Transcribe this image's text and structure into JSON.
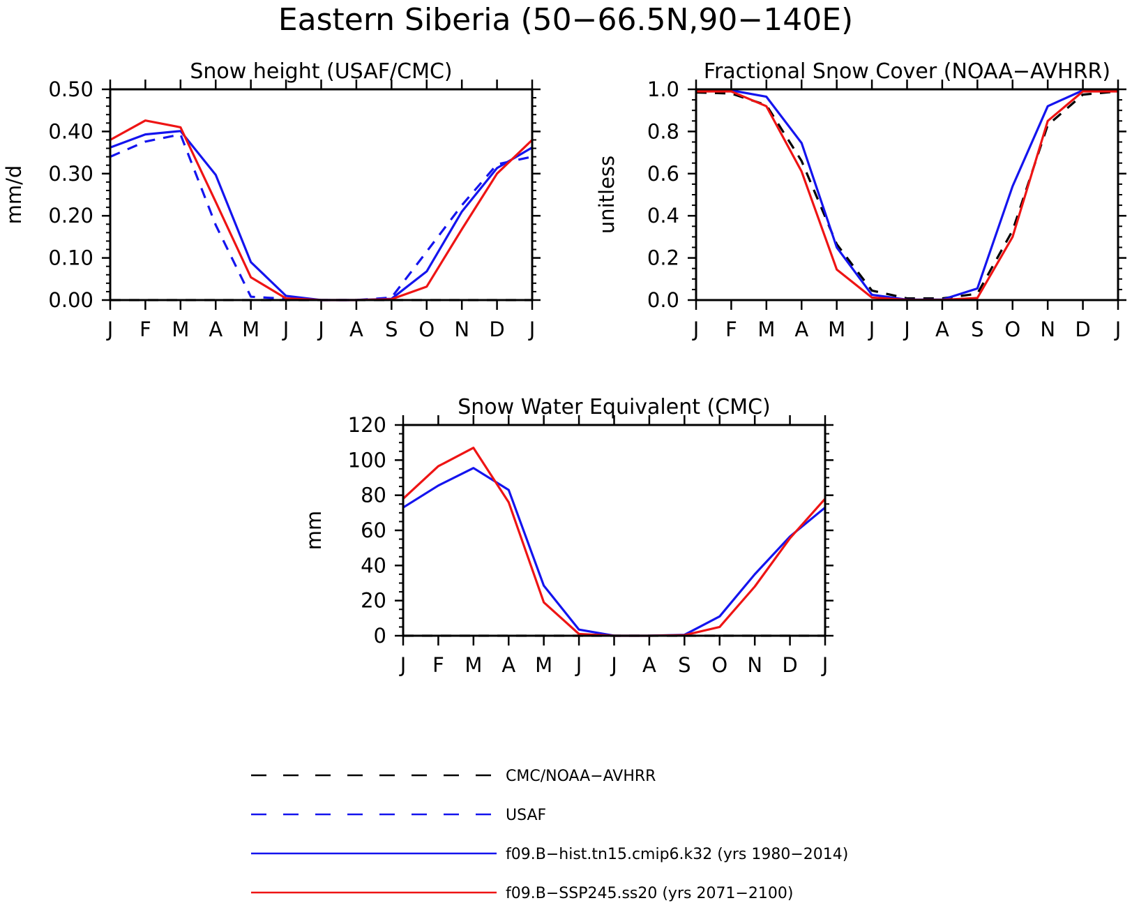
{
  "main_title": "Eastern Siberia (50−66.5N,90−140E)",
  "colors": {
    "obs": "#000000",
    "usaf": "#1414ee",
    "hist": "#1414ee",
    "ssp": "#ee1414"
  },
  "legend": [
    {
      "key": "obs",
      "label": "CMC/NOAA−AVHRR",
      "color": "#000000",
      "dashed": true
    },
    {
      "key": "usaf",
      "label": "USAF",
      "color": "#1414ee",
      "dashed": true
    },
    {
      "key": "hist",
      "label": "f09.B−hist.tn15.cmip6.k32 (yrs 1980−2014)",
      "color": "#1414ee",
      "dashed": false
    },
    {
      "key": "ssp",
      "label": "f09.B−SSP245.ss20 (yrs 2071−2100)",
      "color": "#ee1414",
      "dashed": false
    }
  ],
  "chart_data": [
    {
      "type": "line",
      "title": "Snow height (USAF/CMC)",
      "ylabel": "mm/d",
      "xlabel": "",
      "categories": [
        "J",
        "F",
        "M",
        "A",
        "M",
        "J",
        "J",
        "A",
        "S",
        "O",
        "N",
        "D",
        "J"
      ],
      "ylim": [
        0,
        0.5
      ],
      "yticks": [
        "0.00",
        "0.10",
        "0.20",
        "0.30",
        "0.40",
        "0.50"
      ],
      "series": [
        {
          "name": "CMC/NOAA−AVHRR",
          "key": "obs",
          "values": [
            0,
            0,
            0,
            0,
            0,
            0,
            0,
            0,
            0,
            0,
            0,
            0,
            0
          ]
        },
        {
          "name": "USAF",
          "key": "usaf",
          "values": [
            0.34,
            0.376,
            0.393,
            0.178,
            0.008,
            0.003,
            0.0,
            0.0,
            0.006,
            0.115,
            0.225,
            0.322,
            0.34
          ]
        },
        {
          "name": "f09.B−hist.tn15.cmip6.k32 (yrs 1980−2014)",
          "key": "hist",
          "values": [
            0.362,
            0.393,
            0.401,
            0.297,
            0.09,
            0.01,
            0.0,
            0.0,
            0.003,
            0.068,
            0.21,
            0.313,
            0.362
          ]
        },
        {
          "name": "f09.B−SSP245.ss20 (yrs 2071−2100)",
          "key": "ssp",
          "values": [
            0.38,
            0.426,
            0.41,
            0.233,
            0.054,
            0.004,
            0.0,
            0.0,
            0.002,
            0.032,
            0.168,
            0.3,
            0.38
          ]
        }
      ]
    },
    {
      "type": "line",
      "title": "Fractional Snow Cover (NOAA−AVHRR)",
      "ylabel": "unitless",
      "xlabel": "",
      "categories": [
        "J",
        "F",
        "M",
        "A",
        "M",
        "J",
        "J",
        "A",
        "S",
        "O",
        "N",
        "D",
        "J"
      ],
      "ylim": [
        0,
        1.0
      ],
      "yticks": [
        "0.0",
        "0.2",
        "0.4",
        "0.6",
        "0.8",
        "1.0"
      ],
      "series": [
        {
          "name": "CMC/NOAA−AVHRR",
          "key": "obs",
          "values": [
            0.985,
            0.98,
            0.925,
            0.66,
            0.265,
            0.045,
            0.008,
            0.008,
            0.03,
            0.33,
            0.83,
            0.975,
            0.99
          ]
        },
        {
          "name": "f09.B−hist.tn15.cmip6.k32 (yrs 1980−2014)",
          "key": "hist",
          "values": [
            0.995,
            0.995,
            0.965,
            0.745,
            0.25,
            0.025,
            0.002,
            0.002,
            0.055,
            0.54,
            0.92,
            0.995,
            0.995
          ]
        },
        {
          "name": "f09.B−SSP245.ss20 (yrs 2071−2100)",
          "key": "ssp",
          "values": [
            0.99,
            0.99,
            0.92,
            0.61,
            0.145,
            0.012,
            0.001,
            0.001,
            0.01,
            0.3,
            0.85,
            0.99,
            0.99
          ]
        }
      ]
    },
    {
      "type": "line",
      "title": "Snow Water Equivalent (CMC)",
      "ylabel": "mm",
      "xlabel": "",
      "categories": [
        "J",
        "F",
        "M",
        "A",
        "M",
        "J",
        "J",
        "A",
        "S",
        "O",
        "N",
        "D",
        "J"
      ],
      "ylim": [
        0,
        120
      ],
      "yticks": [
        "0",
        "20",
        "40",
        "60",
        "80",
        "100",
        "120"
      ],
      "series": [
        {
          "name": "CMC/NOAA−AVHRR",
          "key": "obs",
          "values": [
            0,
            0,
            0,
            0,
            0,
            0,
            0,
            0,
            0,
            0,
            0,
            0,
            0
          ]
        },
        {
          "name": "f09.B−hist.tn15.cmip6.k32 (yrs 1980−2014)",
          "key": "hist",
          "values": [
            73,
            85.5,
            95.5,
            83,
            28.5,
            3.5,
            0,
            0,
            0.5,
            11,
            35,
            56.5,
            73
          ]
        },
        {
          "name": "f09.B−SSP245.ss20 (yrs 2071−2100)",
          "key": "ssp",
          "values": [
            78,
            96.5,
            107,
            76,
            19,
            1,
            0,
            0,
            0.3,
            5,
            28,
            55.5,
            78
          ]
        }
      ]
    }
  ]
}
